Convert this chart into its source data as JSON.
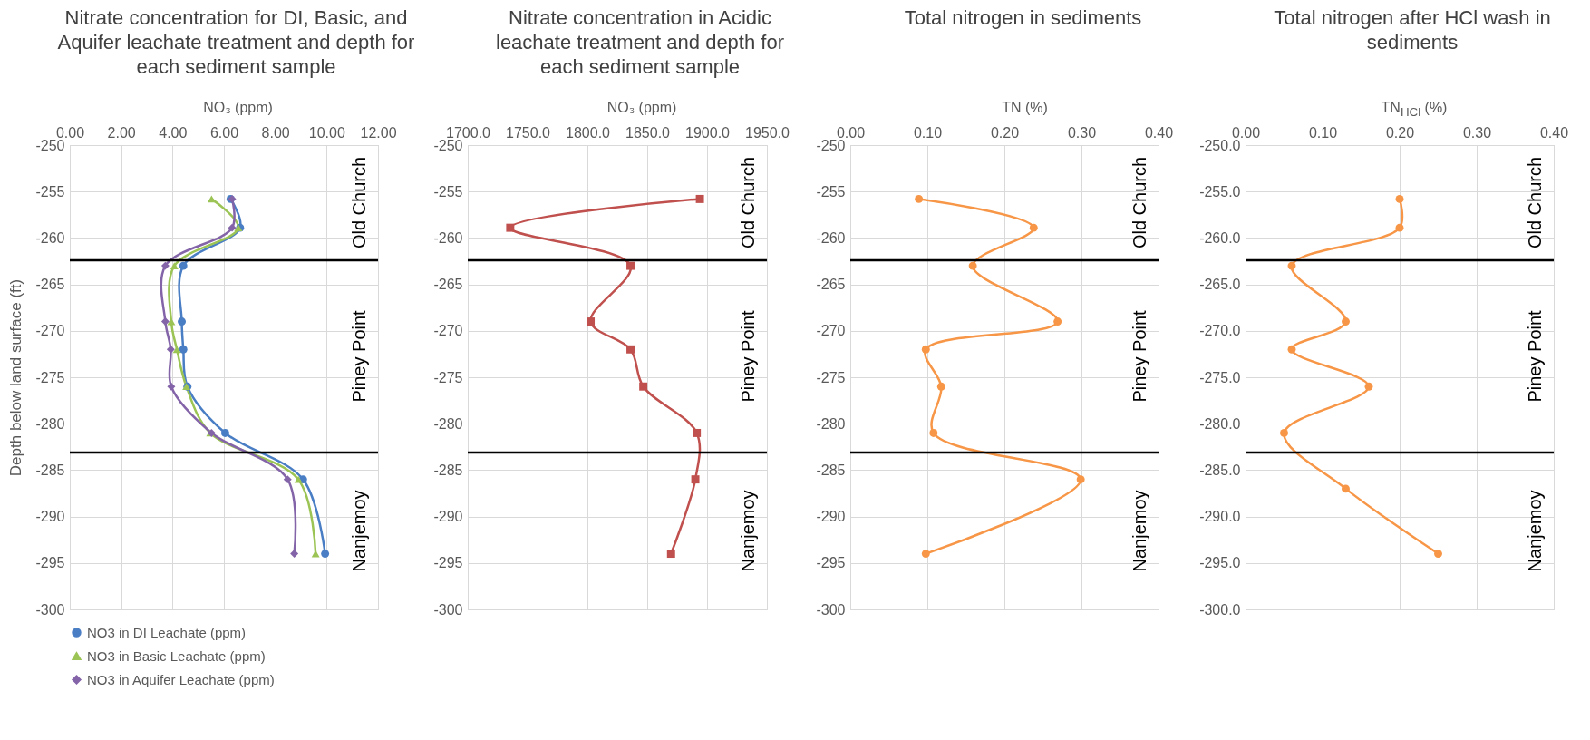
{
  "chart_data": [
    {
      "type": "line",
      "title": "Nitrate concentration for DI, Basic, and Aquifer leachate treatment and depth for each sediment sample",
      "xlabel": "NO₃ (ppm)",
      "ylabel": "Depth below land surface (ft)",
      "xlim": [
        0,
        12
      ],
      "xticks": [
        {
          "value": 0,
          "label": "0.00"
        },
        {
          "value": 2,
          "label": "2.00"
        },
        {
          "value": 4,
          "label": "4.00"
        },
        {
          "value": 6,
          "label": "6.00"
        },
        {
          "value": 8,
          "label": "8.00"
        },
        {
          "value": 10,
          "label": "10.00"
        },
        {
          "value": 12,
          "label": "12.00"
        }
      ],
      "ylim": [
        -300,
        -250
      ],
      "yticks": [
        -300,
        -295,
        -290,
        -285,
        -280,
        -275,
        -270,
        -265,
        -260,
        -255,
        -250
      ],
      "series": [
        {
          "name": "NO3 in DI Leachate (ppm)",
          "color": "#4a7ec4",
          "marker": "circle",
          "x": [
            6.26,
            6.63,
            4.42,
            4.36,
            4.42,
            4.58,
            6.05,
            9.08,
            9.94
          ],
          "values": [
            -255.8,
            -258.9,
            -263,
            -269,
            -272,
            -276,
            -281,
            -286,
            -294
          ]
        },
        {
          "name": "NO3 in Basic Leachate (ppm)",
          "color": "#9bc455",
          "marker": "triangle",
          "x": [
            5.52,
            6.56,
            4.07,
            3.95,
            4.17,
            4.54,
            5.47,
            8.9,
            9.57
          ],
          "values": [
            -255.8,
            -258.9,
            -263,
            -269,
            -272,
            -276,
            -281,
            -286,
            -294
          ]
        },
        {
          "name": "NO3 in Aquifer Leachate (ppm)",
          "color": "#8464a8",
          "marker": "diamond",
          "x": [
            6.32,
            6.32,
            3.72,
            3.72,
            3.93,
            3.95,
            5.52,
            8.48,
            8.74
          ],
          "values": [
            -255.8,
            -258.9,
            -263,
            -269,
            -272,
            -276,
            -281,
            -286,
            -294
          ]
        }
      ],
      "ref_lines": [
        {
          "axis": "y",
          "value": -262.4,
          "color": "#000000"
        },
        {
          "axis": "y",
          "value": -283.1,
          "color": "#000000"
        }
      ],
      "annotations": [
        "Old Church",
        "Piney Point",
        "Nanjemoy"
      ],
      "grid": true,
      "legend": "bottom"
    },
    {
      "type": "line",
      "title": "Nitrate concentration in Acidic leachate treatment and depth for each sediment sample",
      "xlabel": "NO₃ (ppm)",
      "xlim": [
        1700,
        1950
      ],
      "xticks": [
        {
          "value": 1700,
          "label": "1700.0"
        },
        {
          "value": 1750,
          "label": "1750.0"
        },
        {
          "value": 1800,
          "label": "1800.0"
        },
        {
          "value": 1850,
          "label": "1850.0"
        },
        {
          "value": 1900,
          "label": "1900.0"
        },
        {
          "value": 1950,
          "label": "1950.0"
        }
      ],
      "ylim": [
        -300,
        -250
      ],
      "yticks": [
        -300,
        -295,
        -290,
        -285,
        -280,
        -275,
        -270,
        -265,
        -260,
        -255,
        -250
      ],
      "series": [
        {
          "color": "#c0504d",
          "marker": "square",
          "x": [
            1894,
            1735.5,
            1836,
            1802.7,
            1836,
            1846.7,
            1891.4,
            1890.2,
            1869.9
          ],
          "values": [
            -255.8,
            -258.9,
            -263,
            -269,
            -272,
            -276,
            -281,
            -286,
            -294
          ]
        }
      ],
      "ref_lines": [
        {
          "axis": "y",
          "value": -262.4,
          "color": "#000000"
        },
        {
          "axis": "y",
          "value": -283.1,
          "color": "#000000"
        }
      ],
      "annotations": [
        "Old Church",
        "Piney Point",
        "Nanjemoy"
      ],
      "grid": true
    },
    {
      "type": "line",
      "title": "Total nitrogen in sediments",
      "xlabel": "TN (%)",
      "xlim": [
        0,
        0.4
      ],
      "xticks": [
        {
          "value": 0,
          "label": "0.00"
        },
        {
          "value": 0.1,
          "label": "0.10"
        },
        {
          "value": 0.2,
          "label": "0.20"
        },
        {
          "value": 0.3,
          "label": "0.30"
        },
        {
          "value": 0.4,
          "label": "0.40"
        }
      ],
      "ylim": [
        -300,
        -250
      ],
      "yticks": [
        -300,
        -295,
        -290,
        -285,
        -280,
        -275,
        -270,
        -265,
        -260,
        -255,
        -250
      ],
      "series": [
        {
          "color": "#f79646",
          "marker": "circle",
          "x": [
            0.089,
            0.238,
            0.159,
            0.269,
            0.098,
            0.118,
            0.108,
            0.299,
            0.098
          ],
          "values": [
            -255.8,
            -258.9,
            -263,
            -269,
            -272,
            -276,
            -281,
            -286,
            -294
          ]
        }
      ],
      "ref_lines": [
        {
          "axis": "y",
          "value": -262.4,
          "color": "#000000"
        },
        {
          "axis": "y",
          "value": -283.1,
          "color": "#000000"
        }
      ],
      "annotations": [
        "Old Church",
        "Piney Point",
        "Nanjemoy"
      ],
      "grid": true
    },
    {
      "type": "line",
      "title": "Total nitrogen after HCl wash in sediments",
      "xlabel": "TN$_{HCl}$ (%)",
      "xlim": [
        0,
        0.4
      ],
      "xticks": [
        {
          "value": 0,
          "label": "0.00"
        },
        {
          "value": 0.1,
          "label": "0.10"
        },
        {
          "value": 0.2,
          "label": "0.20"
        },
        {
          "value": 0.3,
          "label": "0.30"
        },
        {
          "value": 0.4,
          "label": "0.40"
        }
      ],
      "ylim": [
        -300,
        -250
      ],
      "yticks": [
        {
          "value": -300,
          "label": "-300.0"
        },
        {
          "value": -295,
          "label": "-295.0"
        },
        {
          "value": -290,
          "label": "-290.0"
        },
        {
          "value": -285,
          "label": "-285.0"
        },
        {
          "value": -280,
          "label": "-280.0"
        },
        {
          "value": -275,
          "label": "-275.0"
        },
        {
          "value": -270,
          "label": "-270.0"
        },
        {
          "value": -265,
          "label": "-265.0"
        },
        {
          "value": -260,
          "label": "-260.0"
        },
        {
          "value": -255,
          "label": "-255.0"
        },
        {
          "value": -250,
          "label": "-250.0"
        }
      ],
      "series": [
        {
          "color": "#f79646",
          "marker": "circle",
          "x": [
            0.2,
            0.2,
            0.06,
            0.13,
            0.06,
            0.16,
            0.05,
            0.13,
            0.25
          ],
          "values": [
            -255.8,
            -258.9,
            -263,
            -269,
            -272,
            -276,
            -281,
            -287,
            -294
          ]
        }
      ],
      "ref_lines": [
        {
          "axis": "y",
          "value": -262.4,
          "color": "#000000"
        },
        {
          "axis": "y",
          "value": -283.1,
          "color": "#000000"
        }
      ],
      "annotations": [
        "Old Church",
        "Piney Point",
        "Nanjemoy"
      ],
      "grid": true
    }
  ]
}
